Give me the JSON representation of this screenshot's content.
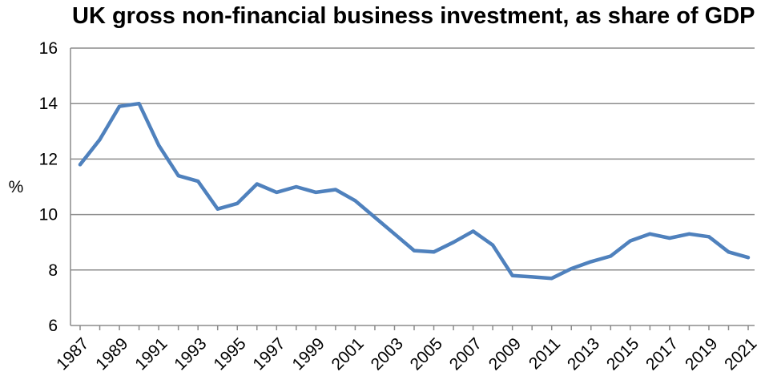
{
  "chart_data": {
    "type": "line",
    "title": "UK gross non-financial business investment, as share of GDP",
    "xlabel": "",
    "ylabel": "%",
    "ylim": [
      6,
      16
    ],
    "yticks": [
      "6",
      "8",
      "10",
      "12",
      "14",
      "16"
    ],
    "xtick_labels": [
      "1987",
      "1989",
      "1991",
      "1993",
      "1995",
      "1997",
      "1999",
      "2001",
      "2003",
      "2005",
      "2007",
      "2009",
      "2011",
      "2013",
      "2015",
      "2017",
      "2019",
      "2021"
    ],
    "grid": true,
    "line_color": "#4f81bd",
    "series": [
      {
        "x": [
          1987,
          1988,
          1989,
          1990,
          1991,
          1992,
          1993,
          1994,
          1995,
          1996,
          1997,
          1998,
          1999,
          2000,
          2001,
          2002,
          2003,
          2004,
          2005,
          2006,
          2007,
          2008,
          2009,
          2010,
          2011,
          2012,
          2013,
          2014,
          2015,
          2016,
          2017,
          2018,
          2019,
          2020,
          2021
        ],
        "values": [
          11.8,
          12.7,
          13.9,
          14.0,
          12.5,
          11.4,
          11.2,
          10.2,
          10.4,
          11.1,
          10.8,
          11.0,
          10.8,
          10.9,
          10.5,
          9.9,
          9.3,
          8.7,
          8.65,
          9.0,
          9.4,
          8.9,
          7.8,
          7.75,
          7.7,
          8.05,
          8.3,
          8.5,
          9.05,
          9.3,
          9.15,
          9.3,
          9.2,
          8.65,
          8.45
        ]
      }
    ]
  }
}
